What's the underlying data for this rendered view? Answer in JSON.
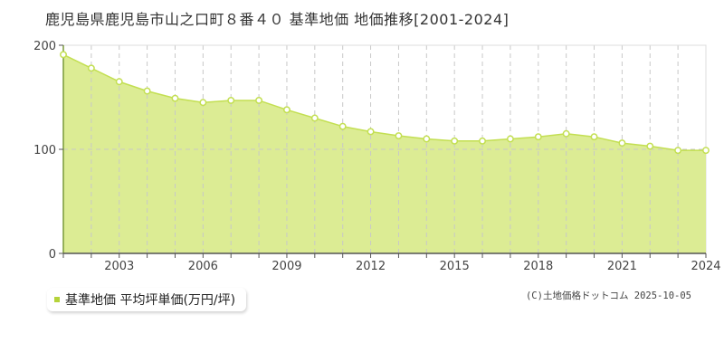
{
  "title": "鹿児島県鹿児島市山之口町８番４０ 基準地価 地価推移[2001-2024]",
  "legend": {
    "label": "基準地価 平均坪単価(万円/坪)",
    "color": "#b5d33a"
  },
  "credit": "(C)土地価格ドットコム 2025-10-05",
  "colors": {
    "fill": "#dcec94",
    "line": "#c3df52",
    "marker_stroke": "#c3df52",
    "marker_fill": "#ffffff",
    "grid": "#c8c8c8",
    "axis": "#555555"
  },
  "chart_data": {
    "type": "area",
    "title": "鹿児島県鹿児島市山之口町８番４０ 基準地価 地価推移[2001-2024]",
    "xlabel": "",
    "ylabel": "",
    "ylim": [
      0,
      200
    ],
    "yticks": [
      0,
      100,
      200
    ],
    "xticks": [
      2003,
      2006,
      2009,
      2012,
      2015,
      2018,
      2021,
      2024
    ],
    "grid": true,
    "legend_position": "bottom-left",
    "series": [
      {
        "name": "基準地価 平均坪単価(万円/坪)",
        "x": [
          2001,
          2002,
          2003,
          2004,
          2005,
          2006,
          2007,
          2008,
          2009,
          2010,
          2011,
          2012,
          2013,
          2014,
          2015,
          2016,
          2017,
          2018,
          2019,
          2020,
          2021,
          2022,
          2023,
          2024
        ],
        "values": [
          191,
          178,
          165,
          156,
          149,
          145,
          147,
          147,
          138,
          130,
          122,
          117,
          113,
          110,
          108,
          108,
          110,
          112,
          115,
          112,
          106,
          103,
          99,
          99
        ]
      }
    ]
  }
}
